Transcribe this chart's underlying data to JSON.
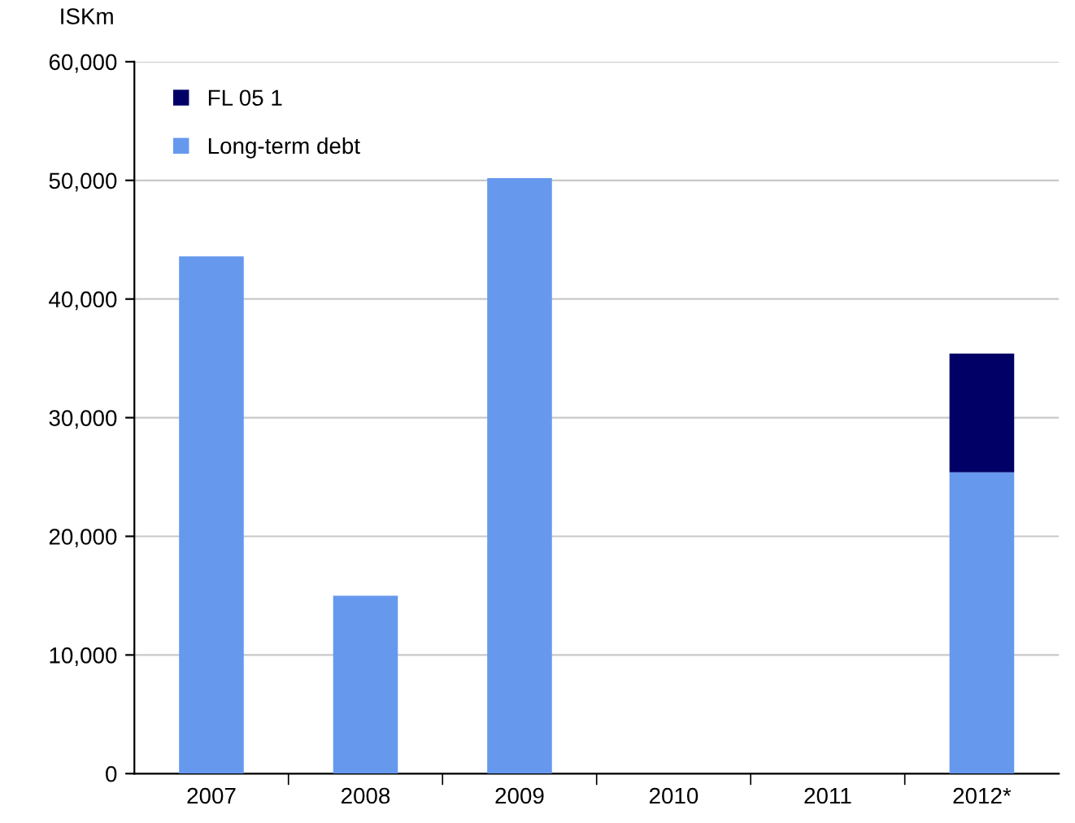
{
  "chart_data": {
    "type": "bar",
    "stacked": true,
    "ylabel": "ISKm",
    "categories": [
      "2007",
      "2008",
      "2009",
      "2010",
      "2011",
      "2012*"
    ],
    "series": [
      {
        "name": "Long-term debt",
        "color": "#6699ee",
        "values": [
          43600,
          15000,
          50200,
          0,
          0,
          25400
        ]
      },
      {
        "name": "FL 05 1",
        "color": "#000066",
        "values": [
          0,
          0,
          0,
          0,
          0,
          10000
        ]
      }
    ],
    "ylim": [
      0,
      60000
    ],
    "yticks": [
      {
        "value": 0,
        "label": "0"
      },
      {
        "value": 10000,
        "label": "10,000"
      },
      {
        "value": 20000,
        "label": "20,000"
      },
      {
        "value": 30000,
        "label": "30,000"
      },
      {
        "value": 40000,
        "label": "40,000"
      },
      {
        "value": 50000,
        "label": "50,000"
      },
      {
        "value": 60000,
        "label": "60,000"
      }
    ],
    "grid": "y",
    "legend": "top left"
  }
}
